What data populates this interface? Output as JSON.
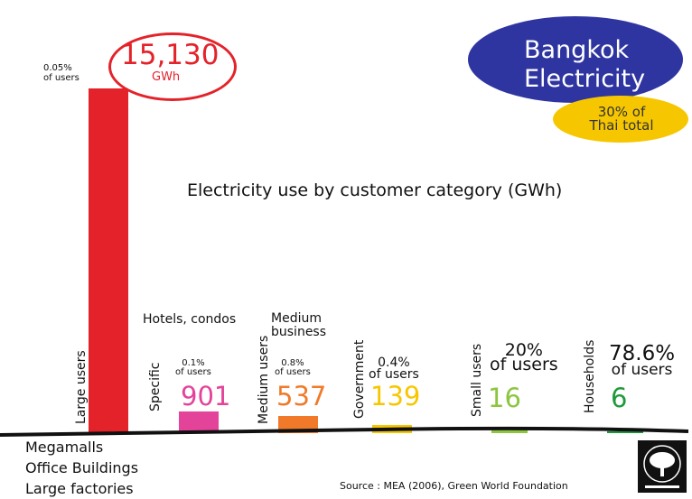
{
  "chart_data": {
    "type": "bar",
    "title": "Electricity use by customer category (GWh)",
    "unit": "GWh",
    "categories": [
      "Large users",
      "Specific",
      "Medium users",
      "Government",
      "Small users",
      "Households"
    ],
    "values": [
      15130,
      901,
      537,
      139,
      16,
      6
    ],
    "value_labels": [
      "15,130",
      "901",
      "537",
      "139",
      "16",
      "6"
    ],
    "user_share": [
      "0.05%",
      "0.1%",
      "0.8%",
      "0.4%",
      "20%",
      "78.6%"
    ],
    "users_word": "of users",
    "colors": [
      "#e4222a",
      "#e4439a",
      "#f07a2a",
      "#f6c700",
      "#8cc63f",
      "#1e9a3a"
    ],
    "annotations": {
      "specific": "Hotels, condos",
      "medium_line1": "Medium",
      "medium_line2": "business"
    },
    "large_user_examples": [
      "Megamalls",
      "Office Buildings",
      "Large factories"
    ],
    "source": "Source : MEA (2006), Green World Foundation"
  },
  "callout": {
    "title_line1": "Bangkok",
    "title_line2": "Electricity",
    "share_line1": "30% of",
    "share_line2": "Thai total",
    "colors": {
      "bubble": "#2f35a0",
      "sub_bubble": "#f6c700"
    }
  },
  "logo": {
    "icon": "tree-icon"
  }
}
